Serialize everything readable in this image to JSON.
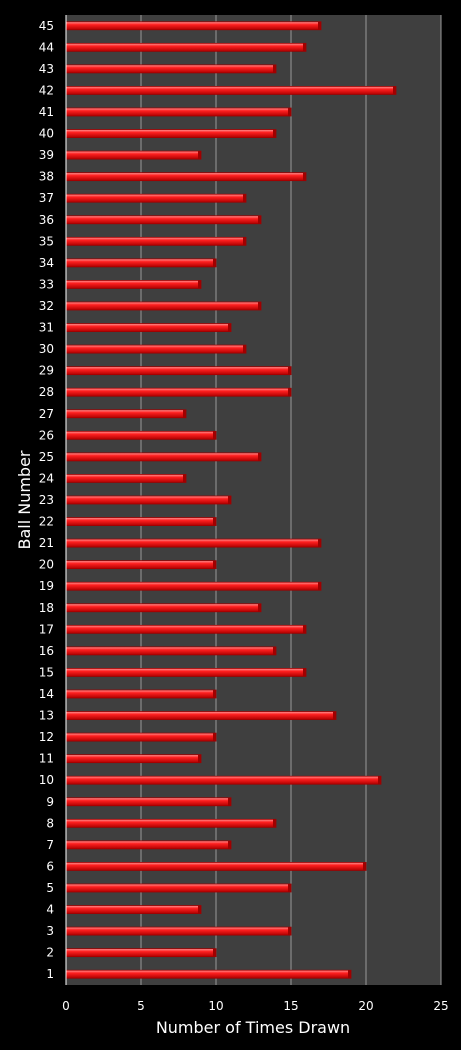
{
  "chart_data": {
    "type": "bar",
    "orientation": "horizontal",
    "xlabel": "Number of Times Drawn",
    "ylabel": "Ball Number",
    "xlim": [
      0,
      25
    ],
    "x_ticks": [
      "0",
      "5",
      "10",
      "15",
      "20",
      "25"
    ],
    "grid": true,
    "colors": {
      "bar": "#ff1a1a",
      "bar_light": "#ff8080",
      "bar_dark": "#a00000",
      "plot_bg": "#3f3f3f",
      "grid": "#9a9a9a",
      "page_bg": "#000000",
      "text": "#ffffff"
    },
    "categories": [
      "1",
      "2",
      "3",
      "4",
      "5",
      "6",
      "7",
      "8",
      "9",
      "10",
      "11",
      "12",
      "13",
      "14",
      "15",
      "16",
      "17",
      "18",
      "19",
      "20",
      "21",
      "22",
      "23",
      "24",
      "25",
      "26",
      "27",
      "28",
      "29",
      "30",
      "31",
      "32",
      "33",
      "34",
      "35",
      "36",
      "37",
      "38",
      "39",
      "40",
      "41",
      "42",
      "43",
      "44",
      "45"
    ],
    "values": [
      19,
      10,
      15,
      9,
      15,
      20,
      11,
      14,
      11,
      21,
      9,
      10,
      18,
      10,
      16,
      14,
      16,
      13,
      17,
      10,
      17,
      10,
      11,
      8,
      13,
      10,
      8,
      15,
      15,
      12,
      11,
      13,
      9,
      10,
      12,
      13,
      12,
      16,
      9,
      14,
      15,
      22,
      14,
      16,
      17
    ]
  }
}
